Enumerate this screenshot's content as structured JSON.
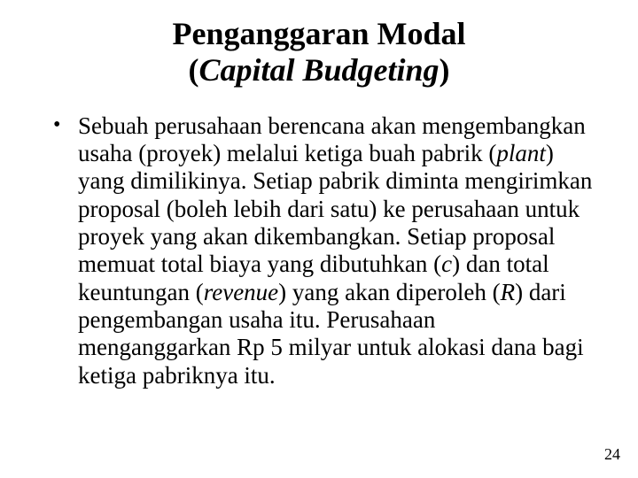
{
  "colors": {
    "background": "#ffffff",
    "text": "#000000"
  },
  "typography": {
    "title_fontsize_pt": 27,
    "body_fontsize_pt": 20,
    "pagenum_fontsize_pt": 14,
    "font_family": "Times New Roman"
  },
  "title": {
    "line1": "Penganggaran Modal",
    "line2_open": "(",
    "line2_italic": "Capital Budgeting",
    "line2_close": ")"
  },
  "body": {
    "seg1": "Sebuah perusahaan berencana akan mengembangkan usaha (proyek) melalui ketiga buah pabrik (",
    "seg2_it": "plant",
    "seg3": ") yang dimilikinya. Setiap pabrik diminta mengirimkan proposal (boleh lebih dari satu) ke perusahaan untuk proyek yang akan dikembangkan. Setiap proposal memuat total biaya yang dibutuhkan (",
    "seg4_it": "c",
    "seg5": ") dan total keuntungan (",
    "seg6_it": "revenue",
    "seg7": ") yang akan diperoleh (",
    "seg8_it": "R",
    "seg9": ") dari pengembangan usaha itu. Perusahaan menganggarkan Rp 5 milyar untuk alokasi dana bagi ketiga pabriknya itu."
  },
  "page_number": "24"
}
